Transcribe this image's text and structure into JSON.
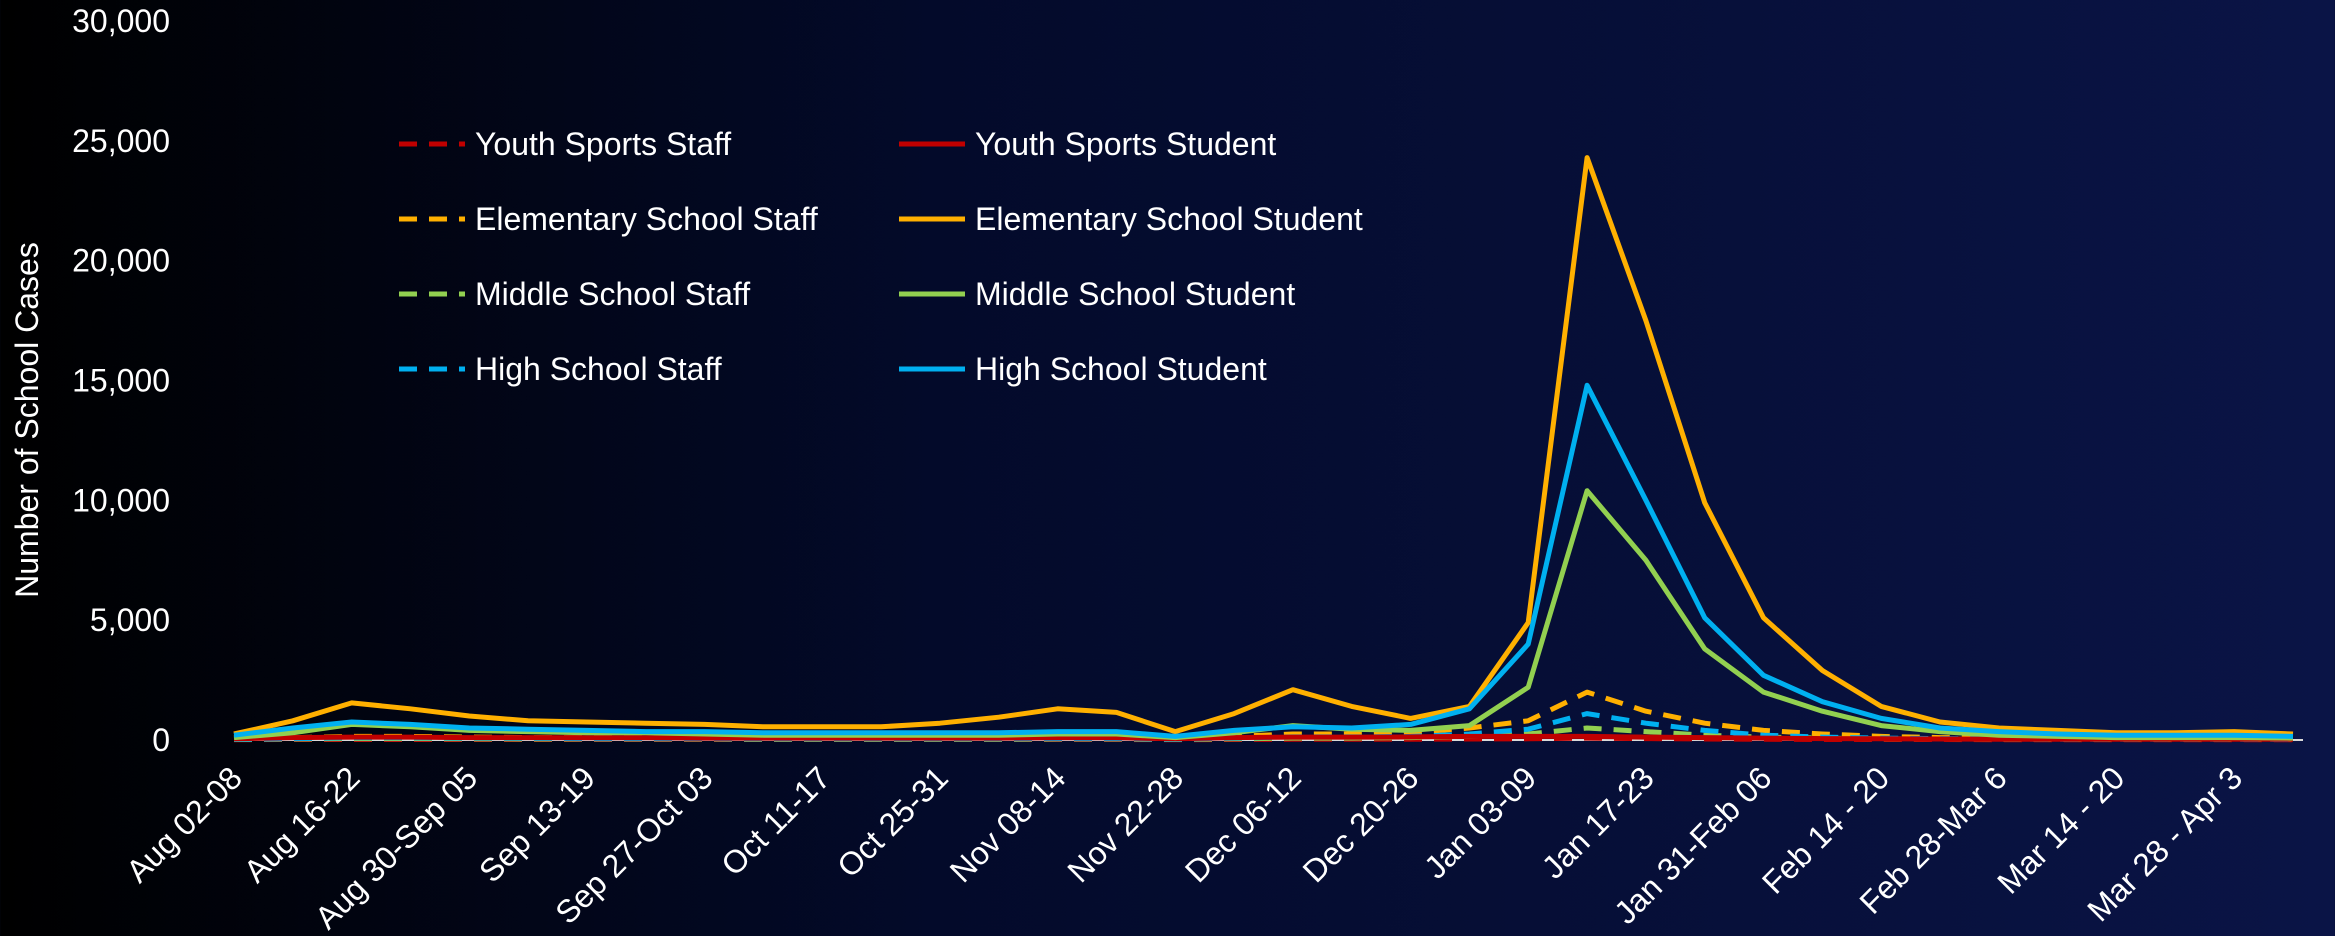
{
  "chart_data": {
    "type": "line",
    "y_label": "Number of School Cases",
    "categories": [
      "Aug 02-08",
      null,
      "Aug 16-22",
      null,
      "Aug 30-Sep 05",
      null,
      "Sep 13-19",
      null,
      "Sep 27-Oct 03",
      null,
      "Oct 11-17",
      null,
      "Oct 25-31",
      null,
      "Nov 08-14",
      null,
      "Nov 22-28",
      null,
      "Dec 06-12",
      null,
      "Dec 20-26",
      null,
      "Jan 03-09",
      null,
      "Jan 17-23",
      null,
      "Jan 31-Feb 06",
      null,
      "Feb 14 - 20",
      null,
      "Feb 28-Mar 6",
      null,
      "Mar 14 - 20",
      null,
      "Mar 28 - Apr 3",
      null
    ],
    "ylim": [
      0,
      30000
    ],
    "yticks": [
      0,
      {
        "value": 5000,
        "label": "5,000"
      },
      {
        "value": 10000,
        "label": "10,000"
      },
      {
        "value": 15000,
        "label": "15,000"
      },
      {
        "value": 20000,
        "label": "20,000"
      },
      {
        "value": 25000,
        "label": "25,000"
      },
      {
        "value": 30000,
        "label": "30,000"
      }
    ],
    "series": [
      {
        "name": "Youth Sports Staff",
        "color": "#c00000",
        "dashed": true,
        "values": [
          10,
          20,
          20,
          20,
          20,
          20,
          20,
          20,
          20,
          20,
          20,
          20,
          20,
          20,
          20,
          20,
          10,
          20,
          30,
          30,
          30,
          40,
          50,
          80,
          60,
          40,
          30,
          20,
          20,
          20,
          10,
          10,
          10,
          10,
          10,
          10
        ]
      },
      {
        "name": "Youth Sports Student",
        "color": "#c00000",
        "dashed": false,
        "values": [
          50,
          100,
          120,
          120,
          100,
          100,
          90,
          90,
          80,
          80,
          80,
          80,
          80,
          80,
          90,
          90,
          50,
          100,
          120,
          120,
          130,
          150,
          150,
          150,
          120,
          100,
          80,
          60,
          50,
          40,
          30,
          30,
          30,
          30,
          30,
          30
        ]
      },
      {
        "name": "Elementary School Staff",
        "color": "#ffb000",
        "dashed": true,
        "values": [
          50,
          100,
          150,
          150,
          120,
          100,
          100,
          90,
          90,
          80,
          80,
          80,
          80,
          90,
          100,
          100,
          50,
          150,
          250,
          250,
          300,
          500,
          800,
          2000,
          1200,
          700,
          400,
          250,
          150,
          100,
          80,
          60,
          50,
          50,
          50,
          40
        ]
      },
      {
        "name": "Elementary School Student",
        "color": "#ffb000",
        "dashed": false,
        "values": [
          250,
          800,
          1550,
          1300,
          1000,
          800,
          750,
          700,
          650,
          550,
          550,
          550,
          700,
          950,
          1300,
          1150,
          350,
          1100,
          2100,
          1400,
          900,
          1400,
          4900,
          24300,
          17500,
          9900,
          5100,
          2900,
          1400,
          750,
          500,
          400,
          300,
          300,
          350,
          250
        ]
      },
      {
        "name": "Middle School Staff",
        "color": "#92d050",
        "dashed": true,
        "values": [
          20,
          40,
          60,
          60,
          50,
          40,
          40,
          40,
          40,
          30,
          30,
          30,
          30,
          30,
          40,
          40,
          20,
          50,
          80,
          80,
          100,
          150,
          250,
          500,
          350,
          200,
          120,
          80,
          50,
          40,
          30,
          20,
          20,
          20,
          20,
          20
        ]
      },
      {
        "name": "Middle School Student",
        "color": "#92d050",
        "dashed": false,
        "values": [
          100,
          300,
          650,
          550,
          400,
          350,
          300,
          300,
          250,
          200,
          200,
          200,
          200,
          200,
          250,
          250,
          100,
          300,
          600,
          450,
          400,
          600,
          2200,
          10400,
          7500,
          3800,
          2000,
          1200,
          600,
          350,
          200,
          150,
          100,
          100,
          100,
          80
        ]
      },
      {
        "name": "High School Staff",
        "color": "#00b0f0",
        "dashed": true,
        "values": [
          30,
          60,
          90,
          90,
          80,
          70,
          60,
          60,
          60,
          50,
          50,
          50,
          50,
          50,
          60,
          60,
          30,
          80,
          130,
          130,
          150,
          250,
          450,
          1100,
          700,
          400,
          200,
          120,
          80,
          60,
          40,
          30,
          30,
          30,
          30,
          20
        ]
      },
      {
        "name": "High School Student",
        "color": "#00b0f0",
        "dashed": false,
        "values": [
          200,
          500,
          750,
          650,
          500,
          450,
          400,
          350,
          350,
          300,
          300,
          300,
          300,
          300,
          350,
          350,
          150,
          400,
          550,
          500,
          650,
          1300,
          4000,
          14800,
          10000,
          5100,
          2700,
          1600,
          900,
          500,
          350,
          250,
          200,
          200,
          200,
          150
        ]
      }
    ]
  }
}
